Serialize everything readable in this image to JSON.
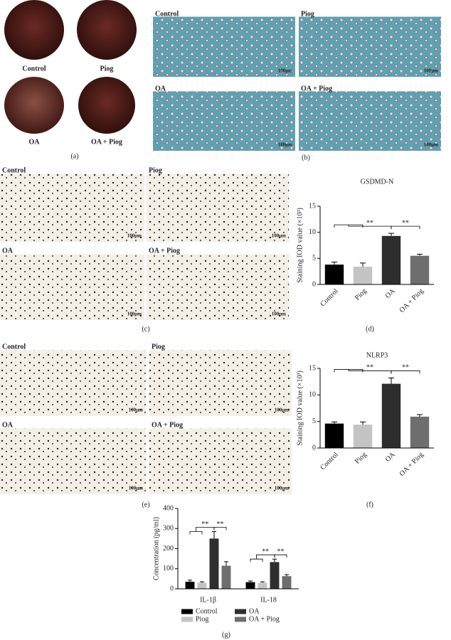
{
  "panel_a": {
    "labels": [
      "Control",
      "Piog",
      "OA",
      "OA + Piog"
    ],
    "caption": "(a)"
  },
  "panel_b": {
    "labels": [
      "Control",
      "Piog",
      "OA",
      "OA + Piog"
    ],
    "scale_bar": "100μm",
    "caption": "(b)"
  },
  "panel_c": {
    "labels": [
      "Control",
      "Piog",
      "OA",
      "OA + Piog"
    ],
    "scale_bar": "100μm",
    "caption": "(c)"
  },
  "panel_e": {
    "labels": [
      "Control",
      "Piog",
      "OA",
      "OA + Piog"
    ],
    "scale_bar": "100μm",
    "caption": "(e)"
  },
  "chart_data": [
    {
      "type": "bar",
      "title": "GSDMD-N",
      "y_label": "Staining IOD value (×10³)",
      "categories": [
        "Control",
        "Piog",
        "OA",
        "OA + Piog"
      ],
      "values": [
        3.8,
        3.4,
        9.3,
        5.5
      ],
      "errors": [
        0.5,
        0.7,
        0.5,
        0.3
      ],
      "colors": [
        "#000000",
        "#c4c4c4",
        "#2e2e2e",
        "#6e6e6e"
      ],
      "ylim": [
        0,
        15
      ],
      "yticks": [
        0,
        5,
        10,
        15
      ],
      "annotations": [
        "**",
        "**"
      ],
      "caption": "(d)"
    },
    {
      "type": "bar",
      "title": "NLRP3",
      "y_label": "Staining IOD value (×10³)",
      "categories": [
        "Control",
        "Piog",
        "OA",
        "OA + Piog"
      ],
      "values": [
        4.6,
        4.4,
        12.1,
        5.9
      ],
      "errors": [
        0.3,
        0.5,
        1.1,
        0.4
      ],
      "colors": [
        "#000000",
        "#c4c4c4",
        "#2e2e2e",
        "#6e6e6e"
      ],
      "ylim": [
        0,
        15
      ],
      "yticks": [
        0,
        5,
        10,
        15
      ],
      "annotations": [
        "**",
        "**"
      ],
      "caption": "(f)"
    },
    {
      "type": "grouped_bar",
      "y_label": "Concentration (pg/ml)",
      "categories": [
        "IL-1β",
        "IL-18"
      ],
      "series": [
        {
          "name": "Control",
          "color": "#000000",
          "values": [
            35,
            33
          ],
          "errors": [
            8,
            6
          ]
        },
        {
          "name": "Piog",
          "color": "#c4c4c4",
          "values": [
            30,
            30
          ],
          "errors": [
            5,
            5
          ]
        },
        {
          "name": "OA",
          "color": "#2e2e2e",
          "values": [
            250,
            133
          ],
          "errors": [
            35,
            15
          ]
        },
        {
          "name": "OA + Piog",
          "color": "#6e6e6e",
          "values": [
            115,
            63
          ],
          "errors": [
            20,
            8
          ]
        }
      ],
      "ylim": [
        0,
        400
      ],
      "yticks": [
        0,
        100,
        200,
        300,
        400
      ],
      "annotations": [
        "**",
        "**",
        "**",
        "**"
      ],
      "caption": "(g)"
    }
  ]
}
